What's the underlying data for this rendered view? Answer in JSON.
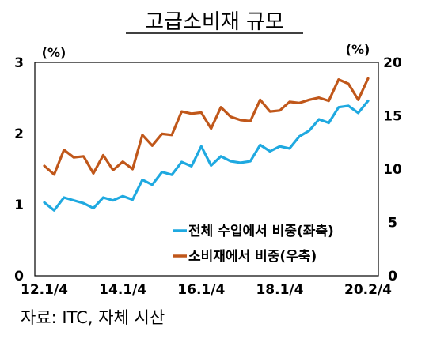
{
  "chart_data": {
    "type": "line",
    "title": "고급소비재 규모",
    "left_unit": "(%)",
    "right_unit": "(%)",
    "y_left": {
      "ticks": [
        "0",
        "1",
        "2",
        "3"
      ],
      "lim": [
        0,
        3
      ]
    },
    "y_right": {
      "ticks": [
        "0",
        "5",
        "10",
        "15",
        "20"
      ],
      "lim": [
        0,
        20
      ]
    },
    "x_tick_labels": [
      "12.1/4",
      "14.1/4",
      "16.1/4",
      "18.1/4",
      "20.2/4"
    ],
    "x_tick_index": [
      0,
      8,
      16,
      24,
      33
    ],
    "x": [
      "12.1/4",
      "12.2/4",
      "12.3/4",
      "12.4/4",
      "13.1/4",
      "13.2/4",
      "13.3/4",
      "13.4/4",
      "14.1/4",
      "14.2/4",
      "14.3/4",
      "14.4/4",
      "15.1/4",
      "15.2/4",
      "15.3/4",
      "15.4/4",
      "16.1/4",
      "16.2/4",
      "16.3/4",
      "16.4/4",
      "17.1/4",
      "17.2/4",
      "17.3/4",
      "17.4/4",
      "18.1/4",
      "18.2/4",
      "18.3/4",
      "18.4/4",
      "19.1/4",
      "19.2/4",
      "19.3/4",
      "19.4/4",
      "20.1/4",
      "20.2/4"
    ],
    "series": [
      {
        "name": "전체 수입에서 비중(좌축)",
        "axis": "left",
        "color": "#1fa9e0",
        "values": [
          1.03,
          0.92,
          1.1,
          1.06,
          1.02,
          0.95,
          1.1,
          1.06,
          1.12,
          1.07,
          1.35,
          1.28,
          1.46,
          1.42,
          1.6,
          1.54,
          1.82,
          1.55,
          1.68,
          1.61,
          1.59,
          1.61,
          1.84,
          1.75,
          1.82,
          1.79,
          1.96,
          2.04,
          2.2,
          2.15,
          2.37,
          2.39,
          2.29,
          2.46
        ]
      },
      {
        "name": "소비재에서 비중(우축)",
        "axis": "right",
        "color": "#c0571a",
        "values": [
          10.3,
          9.5,
          11.8,
          11.1,
          11.2,
          9.6,
          11.3,
          9.9,
          10.7,
          10.0,
          13.2,
          12.2,
          13.3,
          13.2,
          15.4,
          15.2,
          15.3,
          13.8,
          15.8,
          14.9,
          14.6,
          14.5,
          16.5,
          15.4,
          15.5,
          16.3,
          16.2,
          16.5,
          16.7,
          16.4,
          18.4,
          18.0,
          16.5,
          18.5
        ]
      }
    ]
  },
  "source_note": "자료: ITC, 자체 시산"
}
